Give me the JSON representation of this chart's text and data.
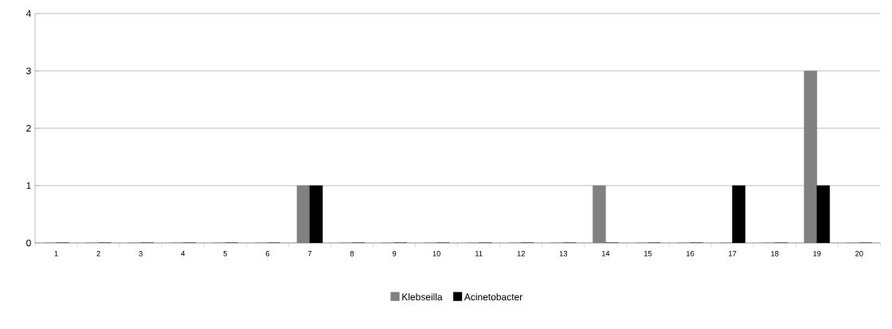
{
  "chart_data": {
    "type": "bar",
    "categories": [
      "1",
      "2",
      "3",
      "4",
      "5",
      "6",
      "7",
      "8",
      "9",
      "10",
      "11",
      "12",
      "13",
      "14",
      "15",
      "16",
      "17",
      "18",
      "19",
      "20"
    ],
    "series": [
      {
        "name": "Klebseilla",
        "color": "#808080",
        "values": [
          0,
          0,
          0,
          0,
          0,
          0,
          1,
          0,
          0,
          0,
          0,
          0,
          0,
          1,
          0,
          0,
          0,
          0,
          3,
          0
        ]
      },
      {
        "name": "Acinetobacter",
        "color": "#000000",
        "values": [
          0,
          0,
          0,
          0,
          0,
          0,
          1,
          0,
          0,
          0,
          0,
          0,
          0,
          0,
          0,
          0,
          1,
          0,
          1,
          0
        ]
      }
    ],
    "ylim": [
      0,
      4
    ],
    "yticks": [
      0,
      1,
      2,
      3,
      4
    ],
    "grid": "y",
    "legend": "bottom"
  }
}
